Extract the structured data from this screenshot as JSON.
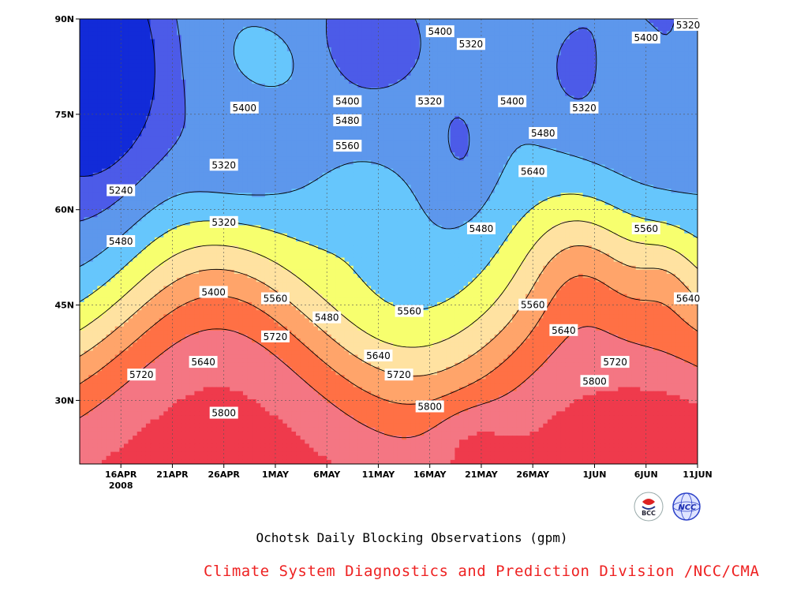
{
  "chart_data": {
    "type": "heatmap",
    "title": "Ochotsk Daily Blocking Observations (gpm)",
    "x": [
      "16APR",
      "21APR",
      "26APR",
      "1MAY",
      "6MAY",
      "11MAY",
      "16MAY",
      "21MAY",
      "26MAY",
      "1JUN",
      "6JUN",
      "11JUN"
    ],
    "x_year_label": "2008",
    "y": [
      "30N",
      "45N",
      "60N",
      "75N",
      "90N"
    ],
    "levels": [
      5240,
      5320,
      5400,
      5480,
      5560,
      5640,
      5720,
      5800
    ],
    "colors": [
      "#122bd8",
      "#4c5be8",
      "#5d97ec",
      "#66c6fc",
      "#f7ff6e",
      "#ffe2a1",
      "#ffa46a",
      "#ff7045",
      "#f47683",
      "#ef3a4c"
    ],
    "contour_labels": [
      {
        "value": "5240",
        "date": "16APR",
        "lat": "63N"
      },
      {
        "value": "5320",
        "date": "26APR",
        "lat": "67N"
      },
      {
        "value": "5320",
        "date": "26APR",
        "lat": "58N"
      },
      {
        "value": "5400",
        "date": "28APR",
        "lat": "76N"
      },
      {
        "value": "5480",
        "date": "16APR",
        "lat": "55N"
      },
      {
        "value": "5400",
        "date": "25APR",
        "lat": "47N"
      },
      {
        "value": "5560",
        "date": "1MAY",
        "lat": "46N"
      },
      {
        "value": "5480",
        "date": "6MAY",
        "lat": "43N"
      },
      {
        "value": "5400",
        "date": "8MAY",
        "lat": "77N"
      },
      {
        "value": "5480",
        "date": "8MAY",
        "lat": "74N"
      },
      {
        "value": "5560",
        "date": "8MAY",
        "lat": "70N"
      },
      {
        "value": "5400",
        "date": "17MAY",
        "lat": "88N"
      },
      {
        "value": "5320",
        "date": "20MAY",
        "lat": "86N"
      },
      {
        "value": "5320",
        "date": "16MAY",
        "lat": "77N"
      },
      {
        "value": "5400",
        "date": "24MAY",
        "lat": "77N"
      },
      {
        "value": "5320",
        "date": "31MAY",
        "lat": "76N"
      },
      {
        "value": "5480",
        "date": "27MAY",
        "lat": "72N"
      },
      {
        "value": "5640",
        "date": "26MAY",
        "lat": "66N"
      },
      {
        "value": "5400",
        "date": "6JUN",
        "lat": "87N"
      },
      {
        "value": "5320",
        "date": "11JUN",
        "lat": "89N"
      },
      {
        "value": "5480",
        "date": "21MAY",
        "lat": "57N"
      },
      {
        "value": "5560",
        "date": "6JUN",
        "lat": "57N"
      },
      {
        "value": "5640",
        "date": "11JUN",
        "lat": "46N"
      },
      {
        "value": "5560",
        "date": "26MAY",
        "lat": "45N"
      },
      {
        "value": "5560",
        "date": "14MAY",
        "lat": "44N"
      },
      {
        "value": "5640",
        "date": "29MAY",
        "lat": "41N"
      },
      {
        "value": "5720",
        "date": "1MAY",
        "lat": "40N"
      },
      {
        "value": "5640",
        "date": "11MAY",
        "lat": "37N"
      },
      {
        "value": "5720",
        "date": "3JUN",
        "lat": "36N"
      },
      {
        "value": "5640",
        "date": "24APR",
        "lat": "36N"
      },
      {
        "value": "5720",
        "date": "13MAY",
        "lat": "34N"
      },
      {
        "value": "5720",
        "date": "18APR",
        "lat": "34N"
      },
      {
        "value": "5800",
        "date": "1JUN",
        "lat": "33N"
      },
      {
        "value": "5800",
        "date": "16MAY",
        "lat": "29N"
      },
      {
        "value": "5800",
        "date": "26APR",
        "lat": "28N"
      }
    ]
  },
  "credit": "Climate System Diagnostics and Prediction Division /NCC/CMA",
  "logos": {
    "bcc": "BCC",
    "ncc": "NCC"
  }
}
